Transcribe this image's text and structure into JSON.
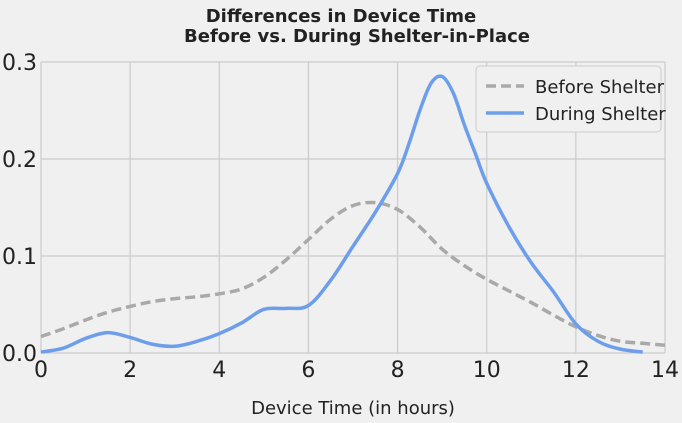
{
  "chart_data": {
    "type": "line",
    "title": "Differences in Device Time",
    "subtitle": "Before vs. During Shelter-in-Place",
    "xlabel": "Device Time (in hours)",
    "ylabel": "",
    "xlim": [
      0,
      14
    ],
    "ylim": [
      0,
      0.3
    ],
    "xticks": [
      0,
      2,
      4,
      6,
      8,
      10,
      12,
      14
    ],
    "xtick_labels": [
      "0",
      "2",
      "4",
      "6",
      "8",
      "10",
      "12",
      "14"
    ],
    "yticks": [
      0,
      0.1,
      0.2,
      0.3
    ],
    "ytick_labels": [
      "0.0",
      "0.1",
      "0.2",
      "0.3"
    ],
    "grid": true,
    "legend_position": "top-right",
    "series": [
      {
        "name": "Before Shelter",
        "color": "#a9a9a9",
        "style": "dashed",
        "x": [
          0,
          0.5,
          1,
          1.5,
          2,
          2.5,
          3,
          3.5,
          4,
          4.5,
          5,
          5.5,
          6,
          6.5,
          7,
          7.5,
          8,
          8.5,
          9,
          9.5,
          10,
          10.5,
          11,
          11.5,
          12,
          12.5,
          13,
          13.5,
          14
        ],
        "y": [
          0.017,
          0.025,
          0.034,
          0.042,
          0.048,
          0.053,
          0.056,
          0.058,
          0.061,
          0.066,
          0.078,
          0.096,
          0.117,
          0.138,
          0.152,
          0.155,
          0.148,
          0.13,
          0.107,
          0.09,
          0.076,
          0.064,
          0.052,
          0.039,
          0.027,
          0.018,
          0.012,
          0.01,
          0.008
        ]
      },
      {
        "name": "During Shelter",
        "color": "#6d9eeb",
        "style": "solid",
        "x": [
          0,
          0.5,
          1,
          1.5,
          2,
          2.5,
          3,
          3.5,
          4,
          4.5,
          5,
          5.5,
          6,
          6.5,
          7,
          7.5,
          8,
          8.25,
          8.5,
          8.75,
          9,
          9.25,
          9.5,
          9.75,
          10,
          10.5,
          11,
          11.5,
          12,
          12.5,
          13,
          13.5
        ],
        "y": [
          0.001,
          0.005,
          0.015,
          0.021,
          0.016,
          0.009,
          0.007,
          0.012,
          0.02,
          0.031,
          0.045,
          0.046,
          0.049,
          0.075,
          0.11,
          0.145,
          0.185,
          0.215,
          0.25,
          0.278,
          0.285,
          0.268,
          0.235,
          0.205,
          0.175,
          0.13,
          0.093,
          0.063,
          0.03,
          0.012,
          0.004,
          0.001
        ]
      }
    ]
  }
}
